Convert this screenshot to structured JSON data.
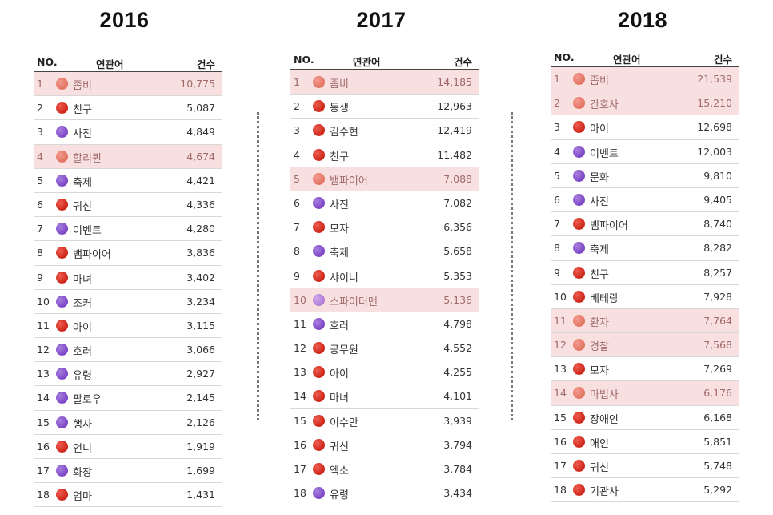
{
  "header": {
    "no_label": "NO.",
    "related_label": "연관어",
    "count_label": "건수"
  },
  "colors": {
    "red": "#d63a2c",
    "purple": "#8b55d1",
    "highlight": "#f8dfe0"
  },
  "years": [
    {
      "year": "2016",
      "rows": [
        {
          "rank": "1",
          "term": "좀비",
          "count": "10,775",
          "color": "red",
          "highlight": true
        },
        {
          "rank": "2",
          "term": "친구",
          "count": "5,087",
          "color": "red",
          "highlight": false
        },
        {
          "rank": "3",
          "term": "사진",
          "count": "4,849",
          "color": "purple",
          "highlight": false
        },
        {
          "rank": "4",
          "term": "할리퀸",
          "count": "4,674",
          "color": "red",
          "highlight": true
        },
        {
          "rank": "5",
          "term": "축제",
          "count": "4,421",
          "color": "purple",
          "highlight": false
        },
        {
          "rank": "6",
          "term": "귀신",
          "count": "4,336",
          "color": "red",
          "highlight": false
        },
        {
          "rank": "7",
          "term": "이벤트",
          "count": "4,280",
          "color": "purple",
          "highlight": false
        },
        {
          "rank": "8",
          "term": "뱀파이어",
          "count": "3,836",
          "color": "red",
          "highlight": false
        },
        {
          "rank": "9",
          "term": "마녀",
          "count": "3,402",
          "color": "red",
          "highlight": false
        },
        {
          "rank": "10",
          "term": "조커",
          "count": "3,234",
          "color": "purple",
          "highlight": false
        },
        {
          "rank": "11",
          "term": "아이",
          "count": "3,115",
          "color": "red",
          "highlight": false
        },
        {
          "rank": "12",
          "term": "호러",
          "count": "3,066",
          "color": "purple",
          "highlight": false
        },
        {
          "rank": "13",
          "term": "유령",
          "count": "2,927",
          "color": "purple",
          "highlight": false
        },
        {
          "rank": "14",
          "term": "팔로우",
          "count": "2,145",
          "color": "purple",
          "highlight": false
        },
        {
          "rank": "15",
          "term": "행사",
          "count": "2,126",
          "color": "purple",
          "highlight": false
        },
        {
          "rank": "16",
          "term": "언니",
          "count": "1,919",
          "color": "red",
          "highlight": false
        },
        {
          "rank": "17",
          "term": "화장",
          "count": "1,699",
          "color": "purple",
          "highlight": false
        },
        {
          "rank": "18",
          "term": "엄마",
          "count": "1,431",
          "color": "red",
          "highlight": false
        }
      ]
    },
    {
      "year": "2017",
      "rows": [
        {
          "rank": "1",
          "term": "좀비",
          "count": "14,185",
          "color": "red",
          "highlight": true
        },
        {
          "rank": "2",
          "term": "동생",
          "count": "12,963",
          "color": "red",
          "highlight": false
        },
        {
          "rank": "3",
          "term": "김수현",
          "count": "12,419",
          "color": "red",
          "highlight": false
        },
        {
          "rank": "4",
          "term": "친구",
          "count": "11,482",
          "color": "red",
          "highlight": false
        },
        {
          "rank": "5",
          "term": "뱀파이어",
          "count": "7,088",
          "color": "red",
          "highlight": true
        },
        {
          "rank": "6",
          "term": "사진",
          "count": "7,082",
          "color": "purple",
          "highlight": false
        },
        {
          "rank": "7",
          "term": "모자",
          "count": "6,356",
          "color": "red",
          "highlight": false
        },
        {
          "rank": "8",
          "term": "축제",
          "count": "5,658",
          "color": "purple",
          "highlight": false
        },
        {
          "rank": "9",
          "term": "샤이니",
          "count": "5,353",
          "color": "red",
          "highlight": false
        },
        {
          "rank": "10",
          "term": "스파이더맨",
          "count": "5,136",
          "color": "purple",
          "highlight": true
        },
        {
          "rank": "11",
          "term": "호러",
          "count": "4,798",
          "color": "purple",
          "highlight": false
        },
        {
          "rank": "12",
          "term": "공무원",
          "count": "4,552",
          "color": "red",
          "highlight": false
        },
        {
          "rank": "13",
          "term": "아이",
          "count": "4,255",
          "color": "red",
          "highlight": false
        },
        {
          "rank": "14",
          "term": "마녀",
          "count": "4,101",
          "color": "red",
          "highlight": false
        },
        {
          "rank": "15",
          "term": "이수만",
          "count": "3,939",
          "color": "red",
          "highlight": false
        },
        {
          "rank": "16",
          "term": "귀신",
          "count": "3,794",
          "color": "red",
          "highlight": false
        },
        {
          "rank": "17",
          "term": "엑소",
          "count": "3,784",
          "color": "red",
          "highlight": false
        },
        {
          "rank": "18",
          "term": "유령",
          "count": "3,434",
          "color": "purple",
          "highlight": false
        }
      ]
    },
    {
      "year": "2018",
      "rows": [
        {
          "rank": "1",
          "term": "좀비",
          "count": "21,539",
          "color": "red",
          "highlight": true
        },
        {
          "rank": "2",
          "term": "간호사",
          "count": "15,210",
          "color": "red",
          "highlight": true
        },
        {
          "rank": "3",
          "term": "아이",
          "count": "12,698",
          "color": "red",
          "highlight": false
        },
        {
          "rank": "4",
          "term": "이벤트",
          "count": "12,003",
          "color": "purple",
          "highlight": false
        },
        {
          "rank": "5",
          "term": "문화",
          "count": "9,810",
          "color": "purple",
          "highlight": false
        },
        {
          "rank": "6",
          "term": "사진",
          "count": "9,405",
          "color": "purple",
          "highlight": false
        },
        {
          "rank": "7",
          "term": "뱀파이어",
          "count": "8,740",
          "color": "red",
          "highlight": false
        },
        {
          "rank": "8",
          "term": "축제",
          "count": "8,282",
          "color": "purple",
          "highlight": false
        },
        {
          "rank": "9",
          "term": "친구",
          "count": "8,257",
          "color": "red",
          "highlight": false
        },
        {
          "rank": "10",
          "term": "베테랑",
          "count": "7,928",
          "color": "red",
          "highlight": false
        },
        {
          "rank": "11",
          "term": "환자",
          "count": "7,764",
          "color": "red",
          "highlight": true
        },
        {
          "rank": "12",
          "term": "경찰",
          "count": "7,568",
          "color": "red",
          "highlight": true
        },
        {
          "rank": "13",
          "term": "모자",
          "count": "7,269",
          "color": "red",
          "highlight": false
        },
        {
          "rank": "14",
          "term": "마법사",
          "count": "6,176",
          "color": "red",
          "highlight": true
        },
        {
          "rank": "15",
          "term": "장애인",
          "count": "6,168",
          "color": "red",
          "highlight": false
        },
        {
          "rank": "16",
          "term": "애인",
          "count": "5,851",
          "color": "red",
          "highlight": false
        },
        {
          "rank": "17",
          "term": "귀신",
          "count": "5,748",
          "color": "red",
          "highlight": false
        },
        {
          "rank": "18",
          "term": "기관사",
          "count": "5,292",
          "color": "red",
          "highlight": false
        }
      ]
    }
  ]
}
